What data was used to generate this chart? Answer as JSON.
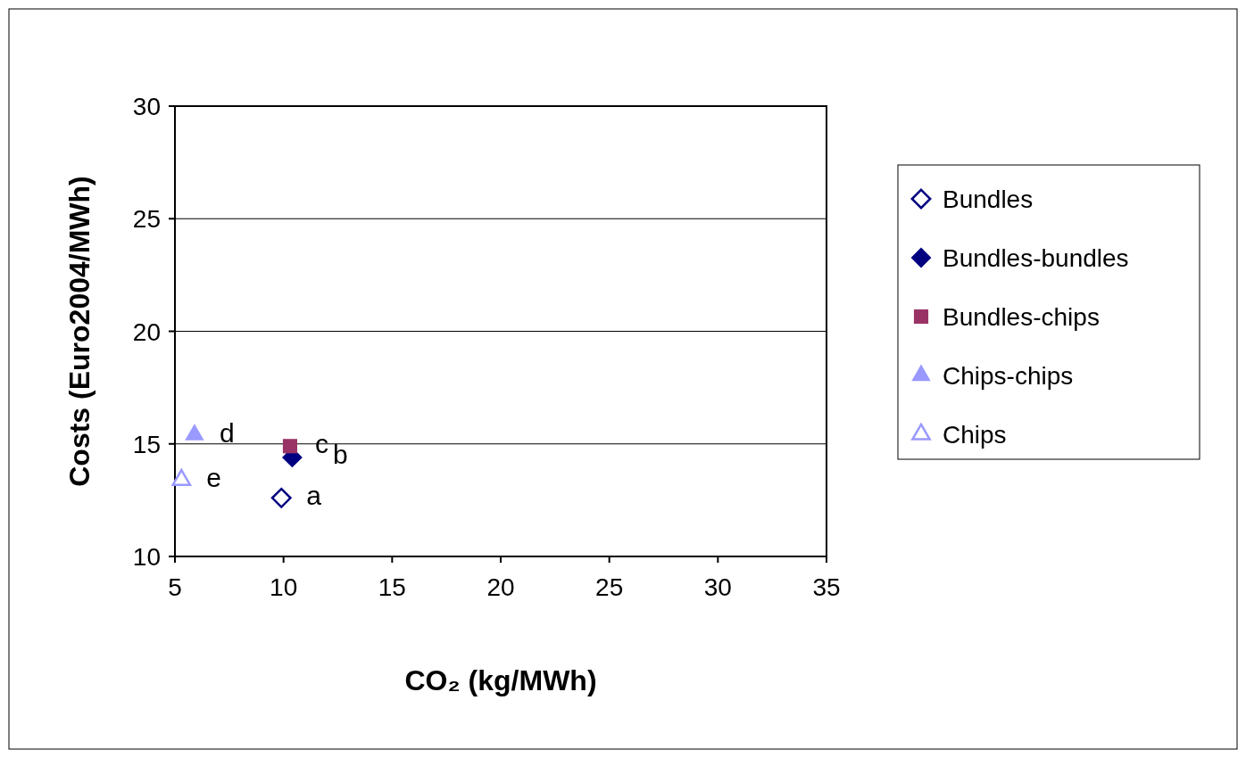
{
  "chart_data": {
    "type": "scatter",
    "xlabel": "CO₂ (kg/MWh)",
    "ylabel": "Costs (Euro2004/MWh)",
    "xlim": [
      5,
      35
    ],
    "xticks": [
      5,
      10,
      15,
      20,
      25,
      30,
      35
    ],
    "ylim": [
      10,
      30
    ],
    "yticks": [
      10,
      15,
      20,
      25,
      30
    ],
    "grid": "y",
    "legend": "right",
    "series": [
      {
        "name": "Bundles",
        "color": "#000080",
        "marker": "diamond",
        "x": [
          9.9
        ],
        "values": [
          12.6
        ]
      },
      {
        "name": "Bundles-bundles",
        "color": "#000080",
        "marker": "diamond",
        "x": [
          10.4
        ],
        "values": [
          14.4
        ]
      },
      {
        "name": "Bundles-chips",
        "color": "#993366",
        "marker": "square",
        "x": [
          10.3
        ],
        "values": [
          14.9
        ]
      },
      {
        "name": "Chips-chips",
        "color": "#9999ff",
        "marker": "triangle",
        "x": [
          5.9
        ],
        "values": [
          15.4
        ]
      },
      {
        "name": "Chips",
        "color": "#9999ff",
        "marker": "triangle",
        "x": [
          5.3
        ],
        "values": [
          13.4
        ]
      }
    ],
    "annotations": [
      {
        "text": "a",
        "x": 9.9,
        "y": 12.6
      },
      {
        "text": "c",
        "x": 10.3,
        "y": 14.9
      },
      {
        "text": "b",
        "x": 10.4,
        "y": 14.4
      },
      {
        "text": "d",
        "x": 5.9,
        "y": 15.4
      },
      {
        "text": "e",
        "x": 5.3,
        "y": 13.4
      }
    ]
  }
}
